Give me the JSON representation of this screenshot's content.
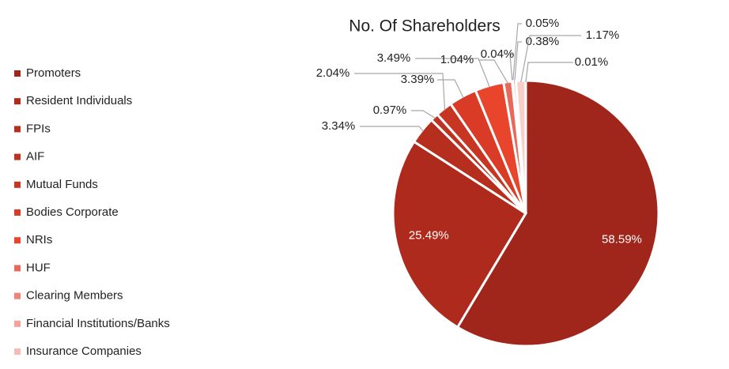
{
  "chart_data": {
    "type": "pie",
    "title": "No. Of Shareholders",
    "categories": [
      "Promoters",
      "Resident Individuals",
      "FPIs",
      "AIF",
      "Mutual Funds",
      "Bodies Corporate",
      "NRIs",
      "HUF",
      "Clearing Members",
      "Financial Institutions/Banks",
      "Insurance Companies",
      null,
      null
    ],
    "values": [
      58.59,
      25.49,
      3.34,
      0.97,
      2.04,
      3.39,
      3.49,
      1.04,
      0.04,
      0.05,
      0.38,
      1.17,
      0.01
    ],
    "value_labels": [
      "58.59%",
      "25.49%",
      "3.34%",
      "0.97%",
      "2.04%",
      "3.39%",
      "3.49%",
      "1.04%",
      "0.04%",
      "0.05%",
      "0.38%",
      "1.17%",
      "0.01%"
    ],
    "colors": [
      "#a0251a",
      "#ad2a1c",
      "#b52e1e",
      "#bd3220",
      "#c63622",
      "#d93b26",
      "#e8452c",
      "#e8685a",
      "#ec8479",
      "#f0a49b",
      "#f4bcb6",
      "#f7d0cb",
      "#fae2df"
    ],
    "legend": "left"
  }
}
